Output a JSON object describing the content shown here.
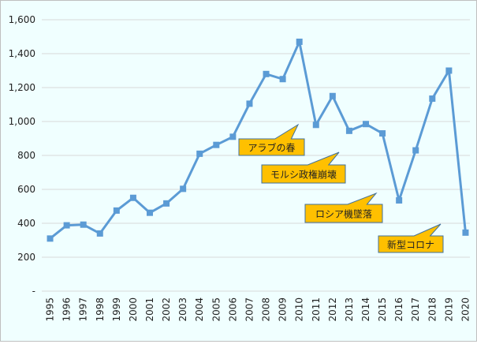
{
  "chart_data": {
    "type": "line",
    "title": "",
    "xlabel": "",
    "ylabel": "",
    "ylim": [
      0,
      1600
    ],
    "grid": true,
    "y_ticks": [
      "-",
      "200",
      "400",
      "600",
      "800",
      "1,000",
      "1,200",
      "1,400",
      "1,600"
    ],
    "categories": [
      "1995",
      "1996",
      "1997",
      "1998",
      "1999",
      "2000",
      "2001",
      "2002",
      "2003",
      "2004",
      "2005",
      "2006",
      "2007",
      "2008",
      "2009",
      "2010",
      "2011",
      "2012",
      "2013",
      "2014",
      "2015",
      "2016",
      "2017",
      "2018",
      "2019",
      "2020"
    ],
    "series": [
      {
        "values": [
          310,
          388,
          392,
          340,
          475,
          550,
          462,
          517,
          603,
          810,
          862,
          910,
          1105,
          1280,
          1250,
          1470,
          980,
          1150,
          945,
          985,
          930,
          535,
          830,
          1135,
          1300,
          345
        ],
        "color": "#5b9bd5",
        "marker": "square"
      }
    ],
    "annotations": [
      {
        "text": "アラブの春",
        "year": "2010"
      },
      {
        "text": "モルシ政権崩壊",
        "year": "2013"
      },
      {
        "text": "ロシア機墜落",
        "year": "2015"
      },
      {
        "text": "新型コロナ",
        "year": "2020"
      }
    ],
    "annotation_color": "#ffc000",
    "annotation_border": "#41719c"
  }
}
